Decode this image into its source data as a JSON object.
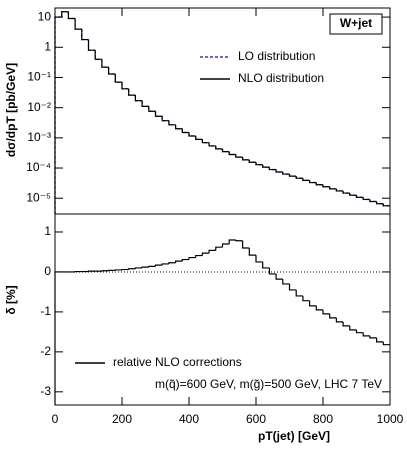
{
  "chart_data": [
    {
      "type": "histogram",
      "ylabel": "dσ/dpT [pb/GeV]",
      "log_y": true,
      "box_label": "W+jet",
      "legend": "upper right",
      "xlim": [
        0,
        1000
      ],
      "ylim": [
        3e-06,
        20
      ],
      "yticks": [
        10,
        1,
        {
          "value": 0.1,
          "label": "10⁻¹"
        },
        {
          "value": 0.01,
          "label": "10⁻²"
        },
        {
          "value": 0.001,
          "label": "10⁻³"
        },
        {
          "value": 0.0001,
          "label": "10⁻⁴"
        },
        {
          "value": 1e-05,
          "label": "10⁻⁵"
        }
      ],
      "bins": [
        0,
        20,
        40,
        60,
        80,
        100,
        120,
        140,
        160,
        180,
        200,
        220,
        240,
        260,
        280,
        300,
        320,
        340,
        360,
        380,
        400,
        420,
        440,
        460,
        480,
        500,
        520,
        540,
        560,
        580,
        600,
        620,
        640,
        660,
        680,
        700,
        720,
        740,
        760,
        780,
        800,
        820,
        840,
        860,
        880,
        900,
        920,
        940,
        960,
        980,
        1000
      ],
      "series": [
        {
          "name": "LO distribution",
          "color": "#3333cc",
          "dashed": true,
          "values": [
            10,
            15,
            9,
            4,
            1.8,
            0.8,
            0.4,
            0.22,
            0.13,
            0.07,
            0.042,
            0.026,
            0.017,
            0.011,
            0.0076,
            0.0052,
            0.0037,
            0.0027,
            0.002,
            0.0015,
            0.00115,
            0.00089,
            0.00069,
            0.00054,
            0.00043,
            0.00035,
            0.00028,
            0.00023,
            0.000186,
            0.000155,
            0.000129,
            0.000107,
            8.9e-05,
            7.4e-05,
            6.3e-05,
            5.4e-05,
            4.6e-05,
            3.9e-05,
            3.3e-05,
            2.8e-05,
            2.4e-05,
            2.04e-05,
            1.74e-05,
            1.48e-05,
            1.26e-05,
            1.07e-05,
            9.1e-06,
            7.8e-06,
            6.6e-06,
            5.6e-06
          ]
        },
        {
          "name": "NLO distribution",
          "color": "#000000",
          "dashed": false,
          "values": [
            10,
            15,
            9,
            4,
            1.8,
            0.8,
            0.4,
            0.22,
            0.13,
            0.07,
            0.042,
            0.026,
            0.017,
            0.011,
            0.0076,
            0.0052,
            0.0037,
            0.0027,
            0.002,
            0.0015,
            0.00115,
            0.00089,
            0.00069,
            0.00054,
            0.00043,
            0.00035,
            0.00028,
            0.00023,
            0.000186,
            0.000155,
            0.000129,
            0.000107,
            8.9e-05,
            7.4e-05,
            6.3e-05,
            5.4e-05,
            4.6e-05,
            3.9e-05,
            3.3e-05,
            2.8e-05,
            2.4e-05,
            2.04e-05,
            1.74e-05,
            1.48e-05,
            1.26e-05,
            1.07e-05,
            9.1e-06,
            7.8e-06,
            6.6e-06,
            5.6e-06
          ]
        }
      ]
    },
    {
      "type": "histogram",
      "ylabel": "δ [%]",
      "xlabel": "pT(jet) [GeV]",
      "annotation": "m(q̃)=600 GeV, m(g̃)=500 GeV, LHC 7 TeV",
      "legend": "lower left",
      "xlim": [
        0,
        1000
      ],
      "ylim": [
        -3.33,
        1.45
      ],
      "xticks": [
        0,
        200,
        400,
        600,
        800,
        1000
      ],
      "yticks": [
        -3,
        -2,
        -1,
        0,
        1
      ],
      "bins": [
        0,
        20,
        40,
        60,
        80,
        100,
        120,
        140,
        160,
        180,
        200,
        220,
        240,
        260,
        280,
        300,
        320,
        340,
        360,
        380,
        400,
        420,
        440,
        460,
        480,
        500,
        520,
        540,
        560,
        580,
        600,
        620,
        640,
        660,
        680,
        700,
        720,
        740,
        760,
        780,
        800,
        820,
        840,
        860,
        880,
        900,
        920,
        940,
        960,
        980,
        1000
      ],
      "series": [
        {
          "name": "relative NLO corrections",
          "color": "#000000",
          "dashed": false,
          "values": [
            0,
            0,
            0,
            0.01,
            0.01,
            0.02,
            0.02,
            0.03,
            0.04,
            0.05,
            0.06,
            0.08,
            0.1,
            0.12,
            0.14,
            0.17,
            0.2,
            0.23,
            0.27,
            0.31,
            0.36,
            0.41,
            0.47,
            0.54,
            0.62,
            0.7,
            0.8,
            0.78,
            0.6,
            0.42,
            0.25,
            0.1,
            -0.05,
            -0.18,
            -0.3,
            -0.45,
            -0.6,
            -0.72,
            -0.85,
            -0.95,
            -1.05,
            -1.15,
            -1.25,
            -1.35,
            -1.45,
            -1.52,
            -1.6,
            -1.65,
            -1.75,
            -1.82
          ]
        }
      ]
    }
  ]
}
